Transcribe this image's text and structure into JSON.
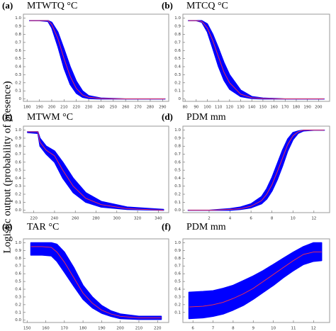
{
  "y_label": "Logistic output (probability of presence)",
  "chart_data": [
    {
      "type": "line",
      "panel": "(a)",
      "title": "MTWTQ °C",
      "x": [
        182,
        190,
        197,
        200,
        205,
        210,
        215,
        220,
        225,
        230,
        240,
        260,
        280,
        292
      ],
      "values": [
        0.97,
        0.97,
        0.97,
        0.92,
        0.75,
        0.5,
        0.28,
        0.13,
        0.05,
        0.02,
        0.005,
        0,
        0,
        0
      ],
      "lower": [
        0.97,
        0.97,
        0.96,
        0.88,
        0.65,
        0.38,
        0.18,
        0.07,
        0.02,
        0.005,
        0,
        0,
        0,
        0
      ],
      "upper": [
        0.97,
        0.97,
        0.97,
        0.95,
        0.83,
        0.62,
        0.4,
        0.22,
        0.1,
        0.04,
        0.01,
        0,
        0,
        0
      ],
      "line_color": "#ff3344",
      "band_color": "#0000ff",
      "xlim": [
        177,
        295
      ],
      "xticks": [
        180,
        190,
        200,
        210,
        220,
        230,
        240,
        250,
        260,
        270,
        280,
        290
      ],
      "ylim": [
        -0.03,
        1.05
      ],
      "yticks": [
        0,
        0.1,
        0.2,
        0.3,
        0.4,
        0.5,
        0.6,
        0.7,
        0.8,
        0.9,
        {
          "value": 1,
          "label": "1.0"
        }
      ]
    },
    {
      "type": "line",
      "panel": "(b)",
      "title": "MTCQ °C",
      "x": [
        83,
        90,
        95,
        100,
        105,
        110,
        115,
        120,
        130,
        140,
        150,
        170,
        190,
        205
      ],
      "values": [
        0.97,
        0.97,
        0.96,
        0.88,
        0.72,
        0.52,
        0.33,
        0.2,
        0.06,
        0.015,
        0.005,
        0,
        0,
        0
      ],
      "lower": [
        0.97,
        0.97,
        0.95,
        0.83,
        0.62,
        0.4,
        0.23,
        0.12,
        0.03,
        0.005,
        0,
        0,
        0,
        0
      ],
      "upper": [
        0.97,
        0.97,
        0.97,
        0.93,
        0.8,
        0.63,
        0.45,
        0.3,
        0.11,
        0.03,
        0.01,
        0,
        0,
        0
      ],
      "line_color": "#ff3344",
      "band_color": "#0000ff",
      "xlim": [
        78,
        210
      ],
      "xticks": [
        80,
        90,
        100,
        110,
        120,
        130,
        140,
        150,
        160,
        170,
        180,
        190,
        200
      ],
      "ylim": [
        -0.03,
        1.05
      ],
      "yticks": [
        0,
        0.1,
        0.2,
        0.3,
        0.4,
        0.5,
        0.6,
        0.7,
        0.8,
        0.9,
        {
          "value": 1,
          "label": "1.0"
        }
      ]
    },
    {
      "type": "line",
      "panel": "(c)",
      "title": "MTWM °C",
      "x": [
        214,
        224,
        226,
        232,
        240,
        248,
        258,
        270,
        285,
        310,
        345
      ],
      "values": [
        0.98,
        0.98,
        0.85,
        0.75,
        0.68,
        0.5,
        0.3,
        0.15,
        0.07,
        0.02,
        0
      ],
      "lower": [
        0.97,
        0.96,
        0.8,
        0.7,
        0.6,
        0.4,
        0.22,
        0.1,
        0.04,
        0.01,
        0
      ],
      "upper": [
        0.98,
        0.98,
        0.9,
        0.8,
        0.74,
        0.6,
        0.4,
        0.22,
        0.11,
        0.04,
        0.01
      ],
      "line_color": "#ff3344",
      "band_color": "#0000ff",
      "xlim": [
        210,
        350
      ],
      "xticks": [
        220,
        240,
        260,
        280,
        300,
        320,
        340
      ],
      "ylim": [
        -0.03,
        1.05
      ],
      "yticks": [
        {
          "value": 0,
          "label": "0.0"
        },
        0.1,
        0.2,
        0.3,
        0.4,
        0.5,
        0.6,
        0.7,
        0.8,
        0.9,
        {
          "value": 1,
          "label": "1.0"
        }
      ]
    },
    {
      "type": "line",
      "panel": "(d)",
      "title": "PDM mm",
      "x": [
        0,
        2,
        4,
        5,
        6,
        7,
        7.5,
        8,
        8.5,
        9,
        9.5,
        10,
        10.5,
        11,
        12,
        13
      ],
      "values": [
        0,
        0,
        0.01,
        0.02,
        0.05,
        0.12,
        0.2,
        0.32,
        0.48,
        0.65,
        0.82,
        0.93,
        0.98,
        1,
        1,
        1
      ],
      "lower": [
        0,
        0,
        0,
        0.01,
        0.03,
        0.08,
        0.14,
        0.24,
        0.38,
        0.55,
        0.74,
        0.88,
        0.96,
        0.99,
        1,
        1
      ],
      "upper": [
        0,
        0,
        0.02,
        0.04,
        0.08,
        0.17,
        0.27,
        0.41,
        0.58,
        0.75,
        0.89,
        0.97,
        0.99,
        1,
        1,
        1
      ],
      "line_color": "#ff3344",
      "band_color": "#0000ff",
      "xlim": [
        -0.5,
        13.5
      ],
      "xticks": [
        2,
        4,
        6,
        8,
        10,
        12
      ],
      "ylim": [
        -0.03,
        1.05
      ],
      "yticks": [
        {
          "value": 0,
          "label": "0.0"
        },
        0.1,
        0.2,
        0.3,
        0.4,
        0.5,
        0.6,
        0.7,
        0.8,
        0.9,
        {
          "value": 1,
          "label": "1.0"
        }
      ]
    },
    {
      "type": "line",
      "panel": "(e)",
      "title": "TAR °C",
      "x": [
        152,
        158,
        163,
        166,
        170,
        175,
        180,
        185,
        190,
        195,
        200,
        210,
        222
      ],
      "values": [
        0.95,
        0.95,
        0.94,
        0.88,
        0.75,
        0.55,
        0.35,
        0.22,
        0.13,
        0.08,
        0.05,
        0.03,
        0.03
      ],
      "lower": [
        0.84,
        0.84,
        0.83,
        0.76,
        0.62,
        0.44,
        0.27,
        0.16,
        0.09,
        0.05,
        0.02,
        0.01,
        0.01
      ],
      "upper": [
        1,
        1,
        1,
        0.98,
        0.88,
        0.68,
        0.45,
        0.3,
        0.19,
        0.12,
        0.08,
        0.05,
        0.05
      ],
      "line_color": "#ff3344",
      "band_color": "#0000ff",
      "xlim": [
        148,
        226
      ],
      "xticks": [
        150,
        160,
        170,
        180,
        190,
        200,
        210,
        220
      ],
      "ylim": [
        -0.03,
        1.05
      ],
      "yticks": [
        {
          "value": 0,
          "label": "0.0"
        },
        0.1,
        0.2,
        0.3,
        0.4,
        0.5,
        0.6,
        0.7,
        0.8,
        0.9,
        {
          "value": 1,
          "label": "1.0"
        }
      ]
    },
    {
      "type": "line",
      "panel": "(f)",
      "title": "PDM mm",
      "x": [
        5.8,
        6.5,
        7,
        7.5,
        8,
        8.5,
        9,
        9.5,
        10,
        10.5,
        11,
        11.5,
        12,
        12.4
      ],
      "values": [
        0.17,
        0.18,
        0.2,
        0.23,
        0.28,
        0.34,
        0.41,
        0.5,
        0.59,
        0.68,
        0.77,
        0.85,
        0.88,
        0.88
      ],
      "lower": [
        0.02,
        0.03,
        0.05,
        0.08,
        0.13,
        0.19,
        0.27,
        0.36,
        0.45,
        0.55,
        0.64,
        0.72,
        0.76,
        0.77
      ],
      "upper": [
        0.36,
        0.37,
        0.38,
        0.41,
        0.45,
        0.51,
        0.57,
        0.64,
        0.72,
        0.8,
        0.88,
        0.95,
        1,
        1
      ],
      "line_color": "#ff3344",
      "band_color": "#0000ff",
      "xlim": [
        5.5,
        12.8
      ],
      "xticks": [
        6,
        7,
        8,
        9,
        10,
        11,
        12
      ],
      "ylim": [
        -0.03,
        1.05
      ],
      "yticks": [
        0.1,
        0.2,
        0.3,
        0.4,
        0.5,
        0.6,
        0.7,
        0.8,
        0.9,
        {
          "value": 1,
          "label": "1.0"
        }
      ]
    }
  ]
}
